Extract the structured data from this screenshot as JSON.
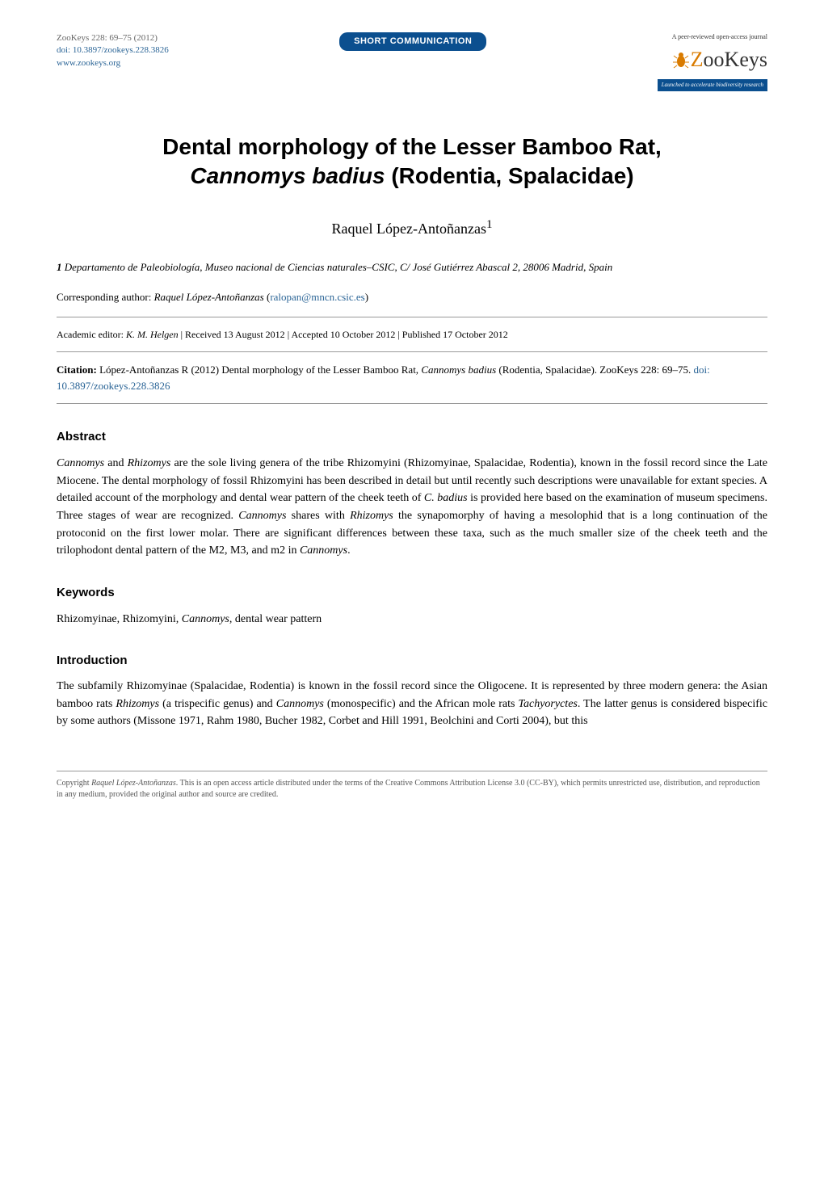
{
  "header": {
    "journal_line": "ZooKeys 228: 69–75 (2012)",
    "doi_line": "doi: 10.3897/zookeys.228.3826",
    "website": "www.zookeys.org",
    "badge_text": "SHORT COMMUNICATION",
    "logo_tagline": "A peer-reviewed open-access journal",
    "logo_text_pre": "oo",
    "logo_text_z": "Z",
    "logo_text_post": "Keys",
    "logo_subtitle": "Launched to accelerate biodiversity research"
  },
  "title_line1": "Dental morphology of the Lesser Bamboo Rat,",
  "title_line2_italic": "Cannomys badius",
  "title_line2_rest": " (Rodentia, Spalacidae)",
  "author_name": "Raquel López-Antoñanzas",
  "author_sup": "1",
  "affiliation": {
    "num": "1",
    "text": " Departamento de Paleobiología, Museo nacional de Ciencias naturales–CSIC, C/ José Gutiérrez Abascal 2, 28006 Madrid, Spain"
  },
  "corresponding_label": "Corresponding author: ",
  "corresponding_name": "Raquel López-Antoñanzas",
  "corresponding_email": "ralopan@mncn.csic.es",
  "editor_line": {
    "label": "Academic editor: ",
    "name": "K. M. Helgen",
    "received": "Received 13 August 2012",
    "accepted": "Accepted 10 October 2012",
    "published": "Published 17 October 2012"
  },
  "citation": {
    "label": "Citation: ",
    "text": "López-Antoñanzas R (2012) Dental morphology of the Lesser Bamboo Rat, ",
    "species": "Cannomys badius",
    "text2": " (Rodentia, Spalacidae). ZooKeys 228: 69–75. ",
    "doi": "doi: 10.3897/zookeys.228.3826"
  },
  "abstract": {
    "heading": "Abstract",
    "html": "<em>Cannomys</em> and <em>Rhizomys</em> are the sole living genera of the tribe Rhizomyini (Rhizomyinae, Spalacidae, Rodentia), known in the fossil record since the Late Miocene. The dental morphology of fossil Rhizomyini has been described in detail but until recently such descriptions were unavailable for extant species. A detailed account of the morphology and dental wear pattern of the cheek teeth of <em>C. badius</em> is provided here based on the examination of museum specimens. Three stages of wear are recognized. <em>Cannomys</em> shares with <em>Rhizomys</em> the synapomorphy of having a mesolophid that is a long continuation of the protoconid on the first lower molar. There are significant differences between these taxa, such as the much smaller size of the cheek teeth and the trilophodont dental pattern of the M2, M3, and m2 in <em>Cannomys</em>."
  },
  "keywords": {
    "heading": "Keywords",
    "text": "Rhizomyinae, Rhizomyini, Cannomys, dental wear pattern",
    "italic_word": "Cannomys"
  },
  "introduction": {
    "heading": "Introduction",
    "html": "The subfamily Rhizomyinae (Spalacidae, Rodentia) is known in the fossil record since the Oligocene. It is represented by three modern genera: the Asian bamboo rats <em>Rhizomys</em> (a trispecific genus) and <em>Cannomys</em> (monospecific) and the African mole rats <em>Tachyoryctes</em>. The latter genus is considered bispecific by some authors (Missone 1971, Rahm 1980, Bucher 1982, Corbet and Hill 1991, Beolchini and Corti 2004), but this"
  },
  "copyright": {
    "text1": "Copyright ",
    "holder": "Raquel López-Antoñanzas",
    "text2": ". This is an open access article distributed under the terms of the Creative Commons Attribution License 3.0 (CC-BY), which permits unrestricted use, distribution, and reproduction in any medium, provided the original author and source are credited."
  },
  "colors": {
    "badge_bg": "#0b4f8f",
    "link": "#2a6496",
    "logo_orange": "#d97b00"
  }
}
